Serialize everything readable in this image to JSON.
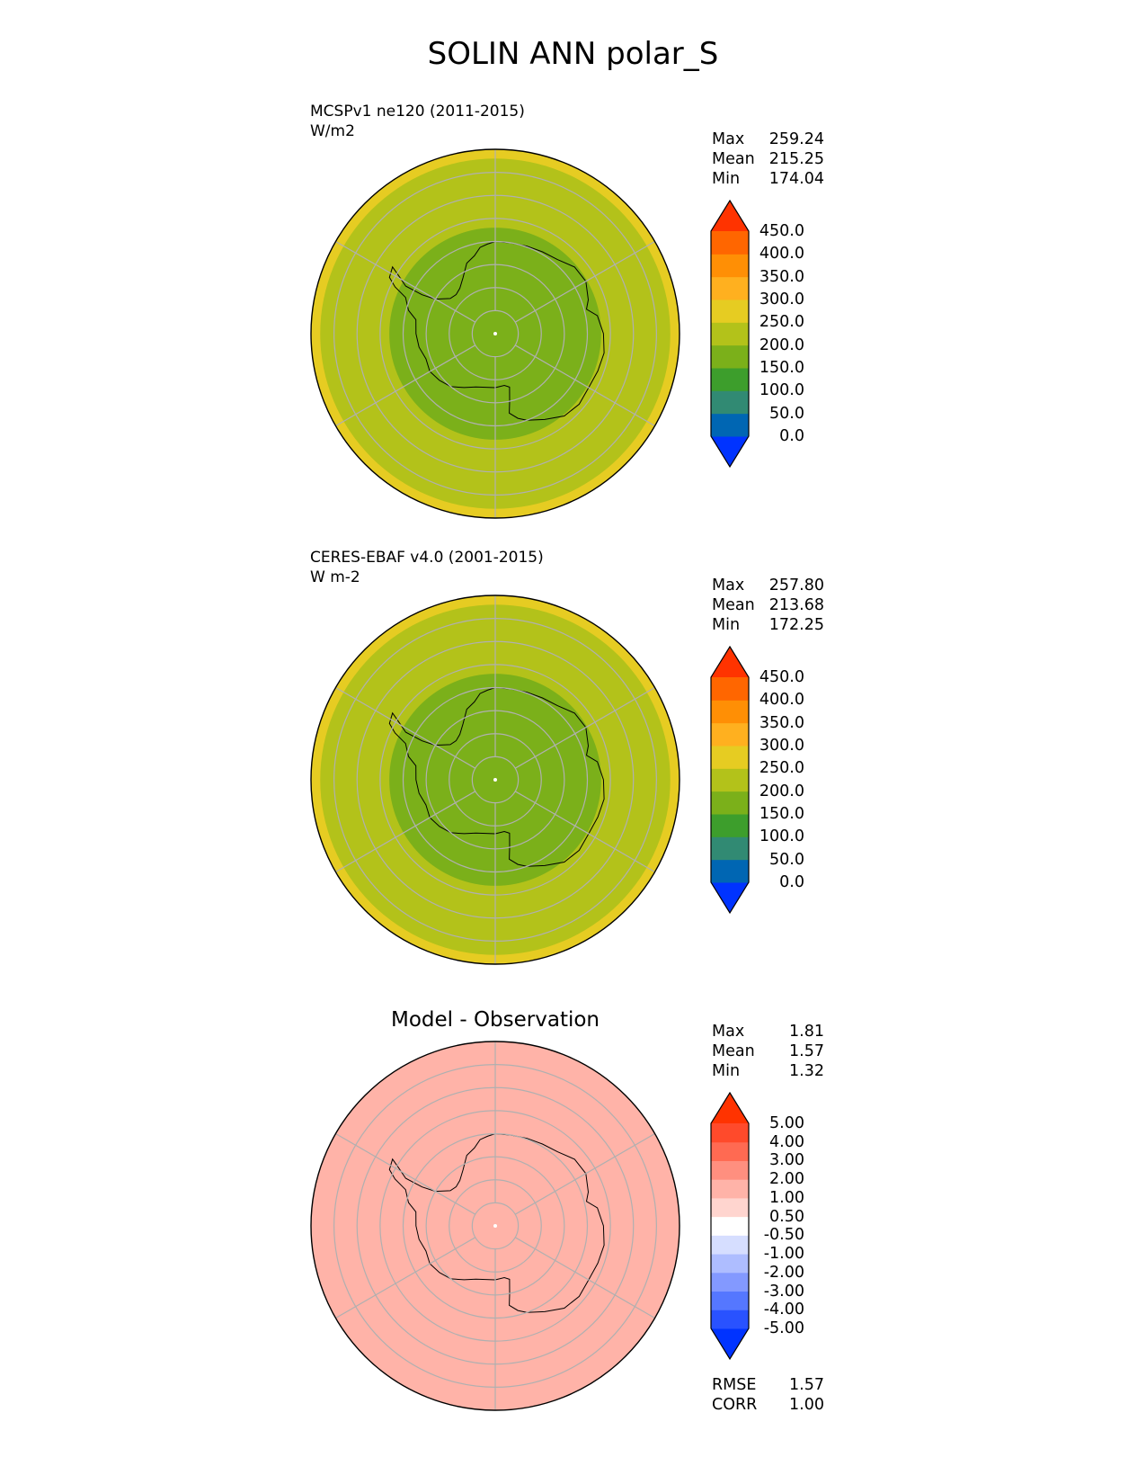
{
  "figure": {
    "title": "SOLIN ANN polar_S"
  },
  "colors": {
    "land_outline": "#000000",
    "grid": "#b0b0b0",
    "frame": "#000000"
  },
  "chart_data": [
    {
      "type": "heatmap",
      "projection": "south-polar-stereographic",
      "title": "",
      "label_line1": "MCSPv1 ne120 (2011-2015)",
      "label_line2": "W/m2",
      "stats": [
        {
          "label": "Max",
          "value": "259.24"
        },
        {
          "label": "Mean",
          "value": "215.25"
        },
        {
          "label": "Min",
          "value": "174.04"
        }
      ],
      "rings": [
        {
          "lat_from": -90,
          "lat_to": -67,
          "value": 175
        },
        {
          "lat_from": -67,
          "lat_to": -52,
          "value": 225
        },
        {
          "lat_from": -52,
          "lat_to": -50,
          "value": 260
        }
      ],
      "colorbar": {
        "ticks": [
          "450.0",
          "400.0",
          "350.0",
          "300.0",
          "250.0",
          "200.0",
          "150.0",
          "100.0",
          "50.0",
          "0.0"
        ],
        "levels": [
          0,
          50,
          100,
          150,
          200,
          250,
          300,
          350,
          400,
          450
        ],
        "colors": [
          "#0033ff",
          "#0066b3",
          "#318a73",
          "#3d9e2c",
          "#7bb01a",
          "#b3c21a",
          "#e6cc22",
          "#ffb01f",
          "#ff8f05",
          "#ff6600",
          "#ff3300"
        ],
        "extend": "both"
      }
    },
    {
      "type": "heatmap",
      "projection": "south-polar-stereographic",
      "title": "",
      "label_line1": "CERES-EBAF v4.0 (2001-2015)",
      "label_line2": "W m-2",
      "stats": [
        {
          "label": "Max",
          "value": "257.80"
        },
        {
          "label": "Mean",
          "value": "213.68"
        },
        {
          "label": "Min",
          "value": "172.25"
        }
      ],
      "rings": [
        {
          "lat_from": -90,
          "lat_to": -67,
          "value": 175
        },
        {
          "lat_from": -67,
          "lat_to": -52,
          "value": 225
        },
        {
          "lat_from": -52,
          "lat_to": -50,
          "value": 260
        }
      ],
      "colorbar": {
        "ticks": [
          "450.0",
          "400.0",
          "350.0",
          "300.0",
          "250.0",
          "200.0",
          "150.0",
          "100.0",
          "50.0",
          "0.0"
        ],
        "levels": [
          0,
          50,
          100,
          150,
          200,
          250,
          300,
          350,
          400,
          450
        ],
        "colors": [
          "#0033ff",
          "#0066b3",
          "#318a73",
          "#3d9e2c",
          "#7bb01a",
          "#b3c21a",
          "#e6cc22",
          "#ffb01f",
          "#ff8f05",
          "#ff6600",
          "#ff3300"
        ],
        "extend": "both"
      }
    },
    {
      "type": "heatmap",
      "projection": "south-polar-stereographic",
      "title": "Model - Observation",
      "label_line1": "",
      "label_line2": "",
      "stats": [
        {
          "label": "Max",
          "value": "1.81"
        },
        {
          "label": "Mean",
          "value": "1.57"
        },
        {
          "label": "Min",
          "value": "1.32"
        }
      ],
      "metrics": [
        {
          "label": "RMSE",
          "value": "1.57"
        },
        {
          "label": "CORR",
          "value": "1.00"
        }
      ],
      "rings": [
        {
          "lat_from": -90,
          "lat_to": -50,
          "value": 1.57
        }
      ],
      "colorbar": {
        "ticks": [
          "5.00",
          "4.00",
          "3.00",
          "2.00",
          "1.00",
          "0.50",
          "-0.50",
          "-1.00",
          "-2.00",
          "-3.00",
          "-4.00",
          "-5.00"
        ],
        "levels": [
          -5,
          -4,
          -3,
          -2,
          -1,
          -0.5,
          0.5,
          1,
          2,
          3,
          4,
          5
        ],
        "colors": [
          "#0033ff",
          "#2952ff",
          "#5577ff",
          "#8399ff",
          "#aebdff",
          "#d6deff",
          "#ffffff",
          "#ffd5cf",
          "#ffb3a8",
          "#ff8f7f",
          "#ff6a52",
          "#ff4a2b",
          "#ff3300"
        ],
        "extend": "both"
      }
    }
  ]
}
